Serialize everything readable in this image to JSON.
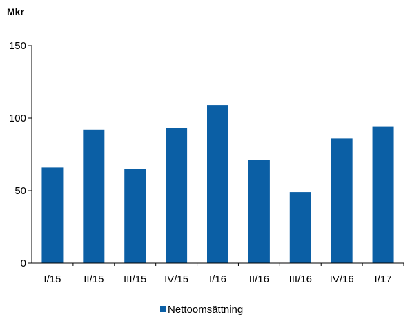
{
  "chart_data": {
    "type": "bar",
    "unit_label": "Mkr",
    "categories": [
      "I/15",
      "II/15",
      "III/15",
      "IV/15",
      "I/16",
      "II/16",
      "III/16",
      "IV/16",
      "I/17"
    ],
    "series": [
      {
        "name": "Nettoomsättning",
        "values": [
          66,
          92,
          65,
          93,
          109,
          71,
          49,
          86,
          94
        ],
        "color": "#0b5fa5"
      }
    ],
    "ylim": [
      0,
      150
    ],
    "yticks": [
      0,
      50,
      100,
      150
    ],
    "grid": false,
    "legend_position": "bottom-center"
  }
}
